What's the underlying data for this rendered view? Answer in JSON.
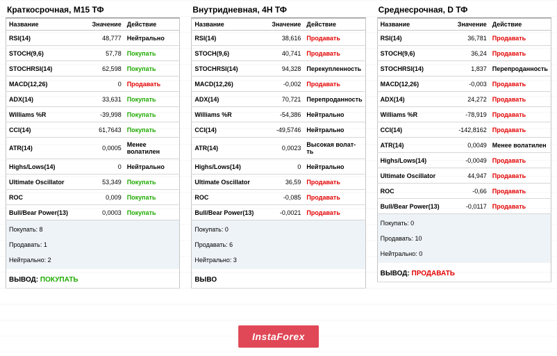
{
  "colors": {
    "buy": "#1faa00",
    "sell": "#e30000",
    "neutral": "#000000",
    "grid": "#e8e8e8",
    "border": "#c5c5c5",
    "summary_bg": "#eef3f7",
    "watermark_bg": "#e04857"
  },
  "headers": {
    "name": "Название",
    "value": "Значение",
    "action": "Действие"
  },
  "actions": {
    "buy": "Покупать",
    "sell": "Продавать",
    "neutral": "Нейтрально",
    "overbought": "Перекупленность",
    "oversold": "Перепроданность",
    "lessvol": "Менее волатилен",
    "highvol": "Высокая волат-ть"
  },
  "watermark": "InstaForex",
  "panels": [
    {
      "title": "Краткосрочная, M15 ТФ",
      "rows": [
        {
          "name": "RSI(14)",
          "value": "48,777",
          "action": "neutral"
        },
        {
          "name": "STOCH(9,6)",
          "value": "57,78",
          "action": "buy"
        },
        {
          "name": "STOCHRSI(14)",
          "value": "62,598",
          "action": "buy"
        },
        {
          "name": "MACD(12,26)",
          "value": "0",
          "action": "sell"
        },
        {
          "name": "ADX(14)",
          "value": "33,631",
          "action": "buy"
        },
        {
          "name": "Williams %R",
          "value": "-39,998",
          "action": "buy"
        },
        {
          "name": "CCI(14)",
          "value": "61,7643",
          "action": "buy"
        },
        {
          "name": "ATR(14)",
          "value": "0,0005",
          "action": "lessvol"
        },
        {
          "name": "Highs/Lows(14)",
          "value": "0",
          "action": "neutral"
        },
        {
          "name": "Ultimate Oscillator",
          "value": "53,349",
          "action": "buy"
        },
        {
          "name": "ROC",
          "value": "0,009",
          "action": "buy"
        },
        {
          "name": "Bull/Bear Power(13)",
          "value": "0,0003",
          "action": "buy"
        }
      ],
      "summary": {
        "buy_label": "Покупать:",
        "buy": "8",
        "sell_label": "Продавать:",
        "sell": "1",
        "neutral_label": "Нейтрально:",
        "neutral": "2"
      },
      "verdict": {
        "label": "ВЫВОД:",
        "value": "ПОКУПАТЬ",
        "cls": "buy"
      }
    },
    {
      "title": "Внутридневная, 4H ТФ",
      "rows": [
        {
          "name": "RSI(14)",
          "value": "38,616",
          "action": "sell"
        },
        {
          "name": "STOCH(9,6)",
          "value": "40,741",
          "action": "sell"
        },
        {
          "name": "STOCHRSI(14)",
          "value": "94,328",
          "action": "overbought"
        },
        {
          "name": "MACD(12,26)",
          "value": "-0,002",
          "action": "sell"
        },
        {
          "name": "ADX(14)",
          "value": "70,721",
          "action": "oversold"
        },
        {
          "name": "Williams %R",
          "value": "-54,386",
          "action": "neutral"
        },
        {
          "name": "CCI(14)",
          "value": "-49,5746",
          "action": "neutral"
        },
        {
          "name": "ATR(14)",
          "value": "0,0023",
          "action": "highvol"
        },
        {
          "name": "Highs/Lows(14)",
          "value": "0",
          "action": "neutral"
        },
        {
          "name": "Ultimate Oscillator",
          "value": "36,59",
          "action": "sell"
        },
        {
          "name": "ROC",
          "value": "-0,085",
          "action": "sell"
        },
        {
          "name": "Bull/Bear Power(13)",
          "value": "-0,0021",
          "action": "sell"
        }
      ],
      "summary": {
        "buy_label": "Покупать:",
        "buy": "0",
        "sell_label": "Продавать:",
        "sell": "6",
        "neutral_label": "Нейтрально:",
        "neutral": "3"
      },
      "verdict": {
        "label": "ВЫВО",
        "value": "",
        "cls": "neutral"
      }
    },
    {
      "title": "Среднесрочная, D ТФ",
      "rows": [
        {
          "name": "RSI(14)",
          "value": "36,781",
          "action": "sell"
        },
        {
          "name": "STOCH(9,6)",
          "value": "36,24",
          "action": "sell"
        },
        {
          "name": "STOCHRSI(14)",
          "value": "1,837",
          "action": "oversold"
        },
        {
          "name": "MACD(12,26)",
          "value": "-0,003",
          "action": "sell"
        },
        {
          "name": "ADX(14)",
          "value": "24,272",
          "action": "sell"
        },
        {
          "name": "Williams %R",
          "value": "-78,919",
          "action": "sell"
        },
        {
          "name": "CCI(14)",
          "value": "-142,8162",
          "action": "sell"
        },
        {
          "name": "ATR(14)",
          "value": "0,0049",
          "action": "lessvol"
        },
        {
          "name": "Highs/Lows(14)",
          "value": "-0,0049",
          "action": "sell"
        },
        {
          "name": "Ultimate Oscillator",
          "value": "44,947",
          "action": "sell"
        },
        {
          "name": "ROC",
          "value": "-0,66",
          "action": "sell"
        },
        {
          "name": "Bull/Bear Power(13)",
          "value": "-0,0117",
          "action": "sell"
        }
      ],
      "summary": {
        "buy_label": "Покупать:",
        "buy": "0",
        "sell_label": "Продавать:",
        "sell": "10",
        "neutral_label": "Нейтрально:",
        "neutral": "0"
      },
      "verdict": {
        "label": "ВЫВОД:",
        "value": "ПРОДАВАТЬ",
        "cls": "sell"
      }
    }
  ]
}
